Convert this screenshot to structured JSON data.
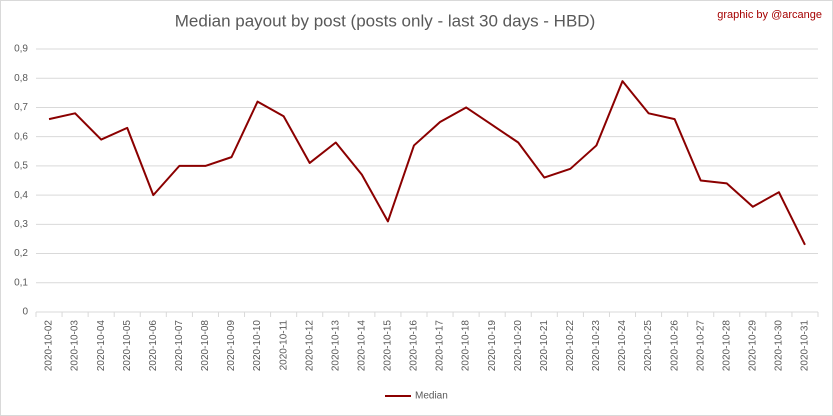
{
  "chart_data": {
    "type": "line",
    "title": "Median payout by post (posts only - last 30 days - HBD)",
    "credit": "graphic by @arcange",
    "categories": [
      "2020-10-02",
      "2020-10-03",
      "2020-10-04",
      "2020-10-05",
      "2020-10-06",
      "2020-10-07",
      "2020-10-08",
      "2020-10-09",
      "2020-10-10",
      "2020-10-11",
      "2020-10-12",
      "2020-10-13",
      "2020-10-14",
      "2020-10-15",
      "2020-10-16",
      "2020-10-17",
      "2020-10-18",
      "2020-10-19",
      "2020-10-20",
      "2020-10-21",
      "2020-10-22",
      "2020-10-23",
      "2020-10-24",
      "2020-10-25",
      "2020-10-26",
      "2020-10-27",
      "2020-10-28",
      "2020-10-29",
      "2020-10-30",
      "2020-10-31"
    ],
    "series": [
      {
        "name": "Median",
        "color": "#8b0000",
        "values": [
          0.66,
          0.68,
          0.59,
          0.63,
          0.4,
          0.5,
          0.5,
          0.53,
          0.72,
          0.67,
          0.51,
          0.58,
          0.47,
          0.31,
          0.57,
          0.65,
          0.7,
          0.64,
          0.58,
          0.46,
          0.49,
          0.57,
          0.79,
          0.68,
          0.66,
          0.45,
          0.44,
          0.36,
          0.41,
          0.23
        ]
      }
    ],
    "ylim": [
      0,
      0.9
    ],
    "yticks": [
      0,
      {
        "value": 0.1,
        "label": "0,1"
      },
      {
        "value": 0.2,
        "label": "0,2"
      },
      {
        "value": 0.3,
        "label": "0,3"
      },
      {
        "value": 0.4,
        "label": "0,4"
      },
      {
        "value": 0.5,
        "label": "0,5"
      },
      {
        "value": 0.6,
        "label": "0,6"
      },
      {
        "value": 0.7,
        "label": "0,7"
      },
      {
        "value": 0.8,
        "label": "0,8"
      },
      {
        "value": 0.9,
        "label": "0,9"
      }
    ],
    "grid": true,
    "legend": "bottom"
  }
}
